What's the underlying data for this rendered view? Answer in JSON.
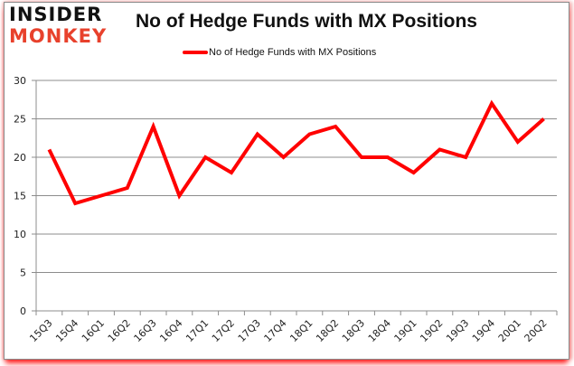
{
  "logo": {
    "line1": "INSIDER",
    "line2": "MONKEY"
  },
  "chart_data": {
    "type": "line",
    "title": "No of Hedge Funds with MX Positions",
    "xlabel": "",
    "ylabel": "",
    "ylim": [
      0,
      30
    ],
    "yticks": [
      0,
      5,
      10,
      15,
      20,
      25,
      30
    ],
    "grid": true,
    "legend_position": "top",
    "categories": [
      "15Q3",
      "15Q4",
      "16Q1",
      "16Q2",
      "16Q3",
      "16Q4",
      "17Q1",
      "17Q2",
      "17Q3",
      "17Q4",
      "18Q1",
      "18Q2",
      "18Q3",
      "18Q4",
      "19Q1",
      "19Q2",
      "19Q3",
      "19Q4",
      "20Q1",
      "20Q2"
    ],
    "series": [
      {
        "name": "No of Hedge Funds with MX Positions",
        "color": "#ff0000",
        "values": [
          21,
          14,
          15,
          16,
          24,
          15,
          20,
          18,
          23,
          20,
          23,
          24,
          20,
          20,
          18,
          21,
          20,
          27,
          22,
          25
        ]
      }
    ]
  }
}
